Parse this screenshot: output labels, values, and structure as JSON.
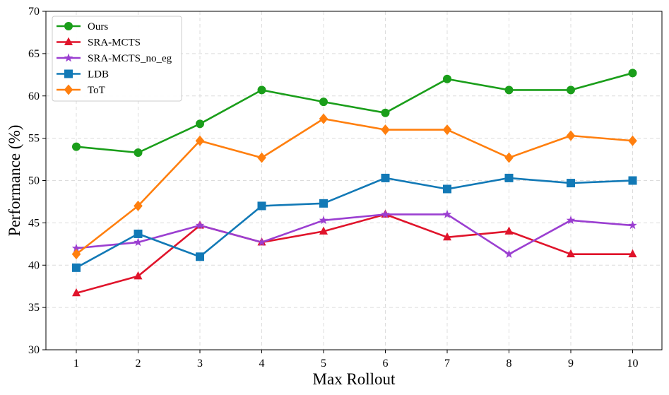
{
  "chart_data": {
    "type": "line",
    "title": "",
    "xlabel": "Max Rollout",
    "ylabel": "Performance (%)",
    "x": [
      1,
      2,
      3,
      4,
      5,
      6,
      7,
      8,
      9,
      10
    ],
    "x_tick_labels": [
      "1",
      "2",
      "3",
      "4",
      "5",
      "6",
      "7",
      "8",
      "9",
      "10"
    ],
    "ylim": [
      30,
      70
    ],
    "y_ticks": [
      30,
      35,
      40,
      45,
      50,
      55,
      60,
      65,
      70
    ],
    "y_tick_labels": [
      "30",
      "35",
      "40",
      "45",
      "50",
      "55",
      "60",
      "65",
      "70"
    ],
    "grid": true,
    "legend_position": "top-left",
    "series": [
      {
        "name": "Ours",
        "color": "#1a9e1a",
        "marker": "circle",
        "values": [
          54.0,
          53.3,
          56.7,
          60.7,
          59.3,
          58.0,
          62.0,
          60.7,
          60.7,
          62.7
        ]
      },
      {
        "name": "SRA-MCTS",
        "color": "#e0142b",
        "marker": "triangle",
        "values": [
          36.7,
          38.7,
          44.7,
          42.7,
          44.0,
          46.0,
          43.3,
          44.0,
          41.3,
          41.3
        ]
      },
      {
        "name": "SRA-MCTS_no_eg",
        "color": "#9b3fd1",
        "marker": "star",
        "values": [
          42.0,
          42.7,
          44.7,
          42.7,
          45.3,
          46.0,
          46.0,
          41.3,
          45.3,
          44.7
        ]
      },
      {
        "name": "LDB",
        "color": "#1279b6",
        "marker": "square",
        "values": [
          39.7,
          43.7,
          41.0,
          47.0,
          47.3,
          50.3,
          49.0,
          50.3,
          49.7,
          50.0
        ]
      },
      {
        "name": "ToT",
        "color": "#ff7f0e",
        "marker": "diamond",
        "values": [
          41.3,
          47.0,
          54.7,
          52.7,
          57.3,
          56.0,
          56.0,
          52.7,
          55.3,
          54.7
        ]
      }
    ]
  }
}
